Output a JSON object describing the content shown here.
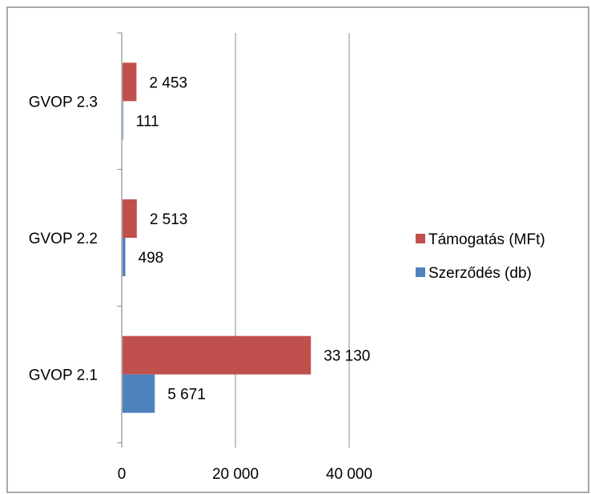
{
  "chart_data": {
    "type": "bar",
    "orientation": "horizontal",
    "categories": [
      "GVOP 2.1",
      "GVOP 2.2",
      "GVOP 2.3"
    ],
    "series": [
      {
        "name": "Támogatás (MFt)",
        "color": "#c0504d",
        "values": [
          33130,
          2513,
          2453
        ],
        "labels": [
          "33 130",
          "2 513",
          "2 453"
        ]
      },
      {
        "name": "Szerződés (db)",
        "color": "#4f81bd",
        "values": [
          5671,
          498,
          111
        ],
        "labels": [
          "5 671",
          "498",
          "111"
        ]
      }
    ],
    "xlim": [
      0,
      40000
    ],
    "xticks": [
      0,
      20000,
      40000
    ],
    "xtick_labels": [
      "0",
      "20 000",
      "40 000"
    ],
    "grid": {
      "vertical": true,
      "horizontal": false
    },
    "legend_position": "right",
    "title": "",
    "xlabel": "",
    "ylabel": ""
  }
}
